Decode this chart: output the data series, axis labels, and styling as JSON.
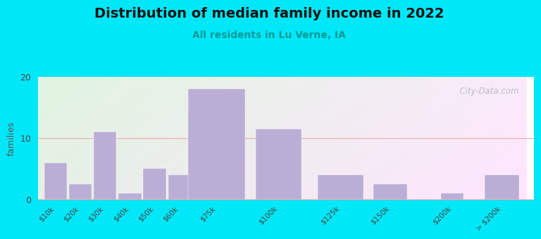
{
  "title": "Distribution of median family income in 2022",
  "subtitle": "All residents in Lu Verne, IA",
  "categories": [
    "$10k",
    "$20k",
    "$30k",
    "$40k",
    "$50k",
    "$60k",
    "$75k",
    "$100k",
    "$125k",
    "$150k",
    "$200k",
    "> $200k"
  ],
  "values": [
    6,
    2.5,
    11,
    1,
    5,
    4,
    18,
    11.5,
    4,
    2.5,
    1,
    4
  ],
  "bar_color": "#bbaed6",
  "bg_outer": "#00e8f8",
  "title_fontsize": 14,
  "subtitle_fontsize": 10,
  "ylabel": "families",
  "ylim": [
    0,
    20
  ],
  "yticks": [
    0,
    10,
    20
  ],
  "watermark": "  City-Data.com"
}
